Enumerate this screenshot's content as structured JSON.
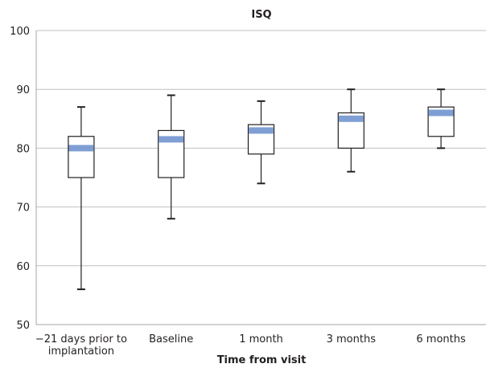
{
  "chart_data": {
    "type": "boxplot",
    "title": "ISQ",
    "xlabel": "Time from visit",
    "ylabel": "",
    "ylim": [
      50,
      100
    ],
    "yticks": [
      50,
      60,
      70,
      80,
      90,
      100
    ],
    "grid": true,
    "categories": [
      [
        "−21 days prior to",
        "implantation"
      ],
      [
        "Baseline"
      ],
      [
        "1 month"
      ],
      [
        "3 months"
      ],
      [
        "6 months"
      ]
    ],
    "boxes": [
      {
        "min": 56,
        "q1": 75,
        "median": 80,
        "q3": 82,
        "max": 87
      },
      {
        "min": 68,
        "q1": 75,
        "median": 81.5,
        "q3": 83,
        "max": 89
      },
      {
        "min": 74,
        "q1": 79,
        "median": 83,
        "q3": 84,
        "max": 88
      },
      {
        "min": 76,
        "q1": 80,
        "median": 85,
        "q3": 86,
        "max": 90
      },
      {
        "min": 80,
        "q1": 82,
        "median": 86,
        "q3": 87,
        "max": 90
      }
    ],
    "colors": {
      "median": "#7f9fd4",
      "box_stroke": "#231f20",
      "whisker": "#231f20",
      "grid": "#bfbfbf",
      "axis": "#a6a6a6"
    }
  }
}
